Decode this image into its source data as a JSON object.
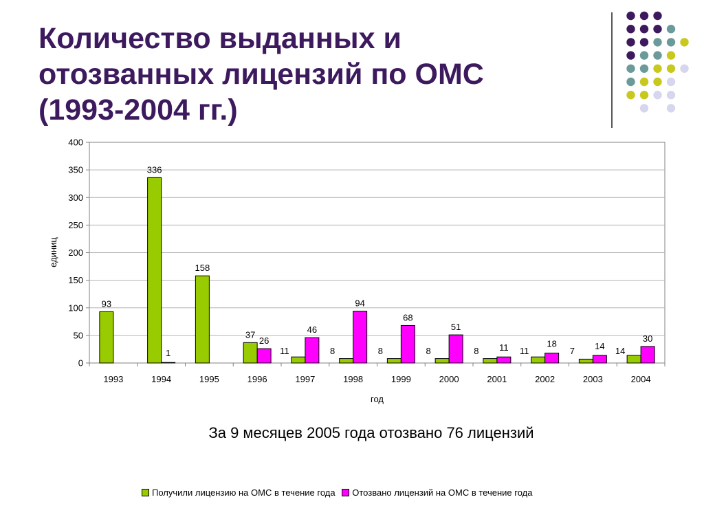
{
  "title_lines": [
    "Количество выданных и",
    "отозванных лицензий по ОМС",
    "(1993-2004 гг.)"
  ],
  "note": "За 9 месяцев 2005 года отозвано 76 лицензий",
  "dot_palette": {
    "purple": "#3d1a5e",
    "teal": "#6b9a9a",
    "lime": "#c8c81e",
    "lavender": "#d6d6ee"
  },
  "chart_data": {
    "type": "bar",
    "title": "",
    "xlabel": "год",
    "ylabel": "единиц",
    "ylim": [
      0,
      400
    ],
    "yticks": [
      0,
      50,
      100,
      150,
      200,
      250,
      300,
      350,
      400
    ],
    "grid": true,
    "legend_position": "bottom",
    "categories": [
      "1993",
      "1994",
      "1995",
      "1996",
      "1997",
      "1998",
      "1999",
      "2000",
      "2001",
      "2002",
      "2003",
      "2004"
    ],
    "series": [
      {
        "name": "Получили лицензию на ОМС в течение года",
        "color": "#99cc00",
        "values": [
          93,
          336,
          158,
          37,
          11,
          8,
          8,
          8,
          8,
          11,
          7,
          14
        ],
        "labels": [
          "93",
          "336",
          "158",
          "37",
          "11",
          "8",
          "8",
          "8",
          "8",
          "11",
          "7",
          "14"
        ]
      },
      {
        "name": "Отозвано лицензий на ОМС в течение года",
        "color": "#ff00ff",
        "values": [
          null,
          1,
          null,
          26,
          46,
          94,
          68,
          51,
          11,
          18,
          14,
          30
        ],
        "labels": [
          "",
          "1",
          "",
          "26",
          "46",
          "94",
          "68",
          "51",
          "11",
          "18",
          "14",
          "30"
        ]
      }
    ]
  }
}
